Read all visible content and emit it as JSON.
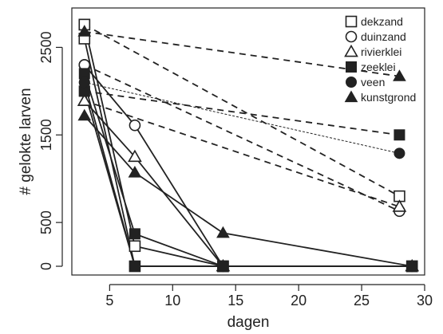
{
  "chart_data": {
    "type": "line",
    "title": "",
    "xlabel": "dagen",
    "ylabel": "# gelokte larven",
    "xlim": [
      2,
      30
    ],
    "ylim": [
      -100,
      2950
    ],
    "xticks": [
      5,
      10,
      15,
      20,
      25,
      30
    ],
    "yticks": [
      0,
      500,
      1500,
      2500
    ],
    "legend": [
      {
        "label": "dekzand",
        "marker": "open-square"
      },
      {
        "label": "duinzand",
        "marker": "open-circle"
      },
      {
        "label": "rivierklei",
        "marker": "open-triangle"
      },
      {
        "label": "zeeklei",
        "marker": "filled-square"
      },
      {
        "label": "veen",
        "marker": "filled-circle"
      },
      {
        "label": "kunstgrond",
        "marker": "filled-triangle"
      }
    ],
    "legend_position": "top-right",
    "series": [
      {
        "label": "dekzand",
        "marker": "open-square",
        "style": "solid",
        "points": [
          [
            3,
            2760
          ],
          [
            7,
            230
          ],
          [
            14,
            0
          ],
          [
            29,
            0
          ]
        ]
      },
      {
        "label": "dekzand",
        "marker": "open-square",
        "style": "solid",
        "points": [
          [
            3,
            2600
          ],
          [
            7,
            0
          ],
          [
            14,
            0
          ],
          [
            29,
            0
          ]
        ]
      },
      {
        "label": "dekzand",
        "marker": "open-square",
        "style": "dashed",
        "points": [
          [
            3,
            2760
          ],
          [
            28,
            800
          ]
        ]
      },
      {
        "label": "duinzand",
        "marker": "open-circle",
        "style": "solid",
        "points": [
          [
            3,
            2300
          ],
          [
            7,
            1610
          ],
          [
            14,
            0
          ],
          [
            29,
            0
          ]
        ]
      },
      {
        "label": "duinzand",
        "marker": "open-circle",
        "style": "dashed",
        "points": [
          [
            3,
            2300
          ],
          [
            28,
            630
          ]
        ]
      },
      {
        "label": "rivierklei",
        "marker": "open-triangle",
        "style": "solid",
        "points": [
          [
            3,
            1890
          ],
          [
            7,
            1250
          ],
          [
            14,
            0
          ],
          [
            29,
            0
          ]
        ]
      },
      {
        "label": "rivierklei",
        "marker": "open-triangle",
        "style": "dashed",
        "points": [
          [
            3,
            1890
          ],
          [
            28,
            680
          ]
        ]
      },
      {
        "label": "zeeklei",
        "marker": "filled-square",
        "style": "solid",
        "points": [
          [
            3,
            2200
          ],
          [
            7,
            370
          ],
          [
            14,
            0
          ],
          [
            29,
            0
          ]
        ]
      },
      {
        "label": "zeeklei",
        "marker": "filled-square",
        "style": "solid",
        "points": [
          [
            3,
            2000
          ],
          [
            7,
            0
          ],
          [
            14,
            0
          ],
          [
            29,
            0
          ]
        ]
      },
      {
        "label": "zeeklei",
        "marker": "filled-square",
        "style": "dashed",
        "points": [
          [
            3,
            2000
          ],
          [
            28,
            1500
          ]
        ]
      },
      {
        "label": "veen",
        "marker": "filled-circle",
        "style": "solid",
        "points": [
          [
            3,
            2100
          ],
          [
            7,
            0
          ],
          [
            14,
            0
          ],
          [
            29,
            0
          ]
        ]
      },
      {
        "label": "veen",
        "marker": "filled-circle",
        "style": "dotted",
        "points": [
          [
            3,
            2100
          ],
          [
            28,
            1290
          ]
        ]
      },
      {
        "label": "kunstgrond",
        "marker": "filled-triangle",
        "style": "solid",
        "points": [
          [
            3,
            1720
          ],
          [
            7,
            1070
          ],
          [
            14,
            380
          ],
          [
            29,
            0
          ]
        ]
      },
      {
        "label": "kunstgrond",
        "marker": "filled-triangle",
        "style": "dashed",
        "points": [
          [
            3,
            2680
          ],
          [
            28,
            2170
          ]
        ]
      }
    ]
  }
}
